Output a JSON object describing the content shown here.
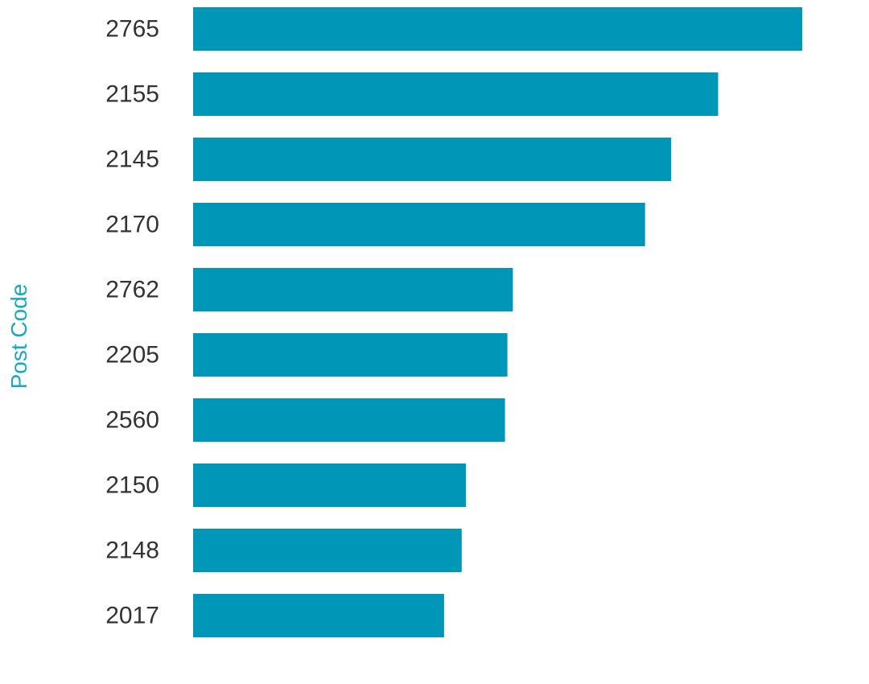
{
  "chart_data": {
    "type": "bar",
    "orientation": "horizontal",
    "categories": [
      "2765",
      "2155",
      "2145",
      "2170",
      "2762",
      "2205",
      "2560",
      "2150",
      "2148",
      "2017"
    ],
    "values": [
      100,
      86.2,
      78.5,
      74.2,
      52.5,
      51.6,
      51.2,
      44.8,
      44.1,
      41.2
    ],
    "title": "",
    "xlabel": "",
    "ylabel": "Post Code",
    "xlim": [
      0,
      100
    ],
    "grid": false,
    "legend": "none",
    "bar_color": "#0096b7",
    "axis_label_color": "#1ba6c2",
    "tick_label_color": "#333333"
  }
}
